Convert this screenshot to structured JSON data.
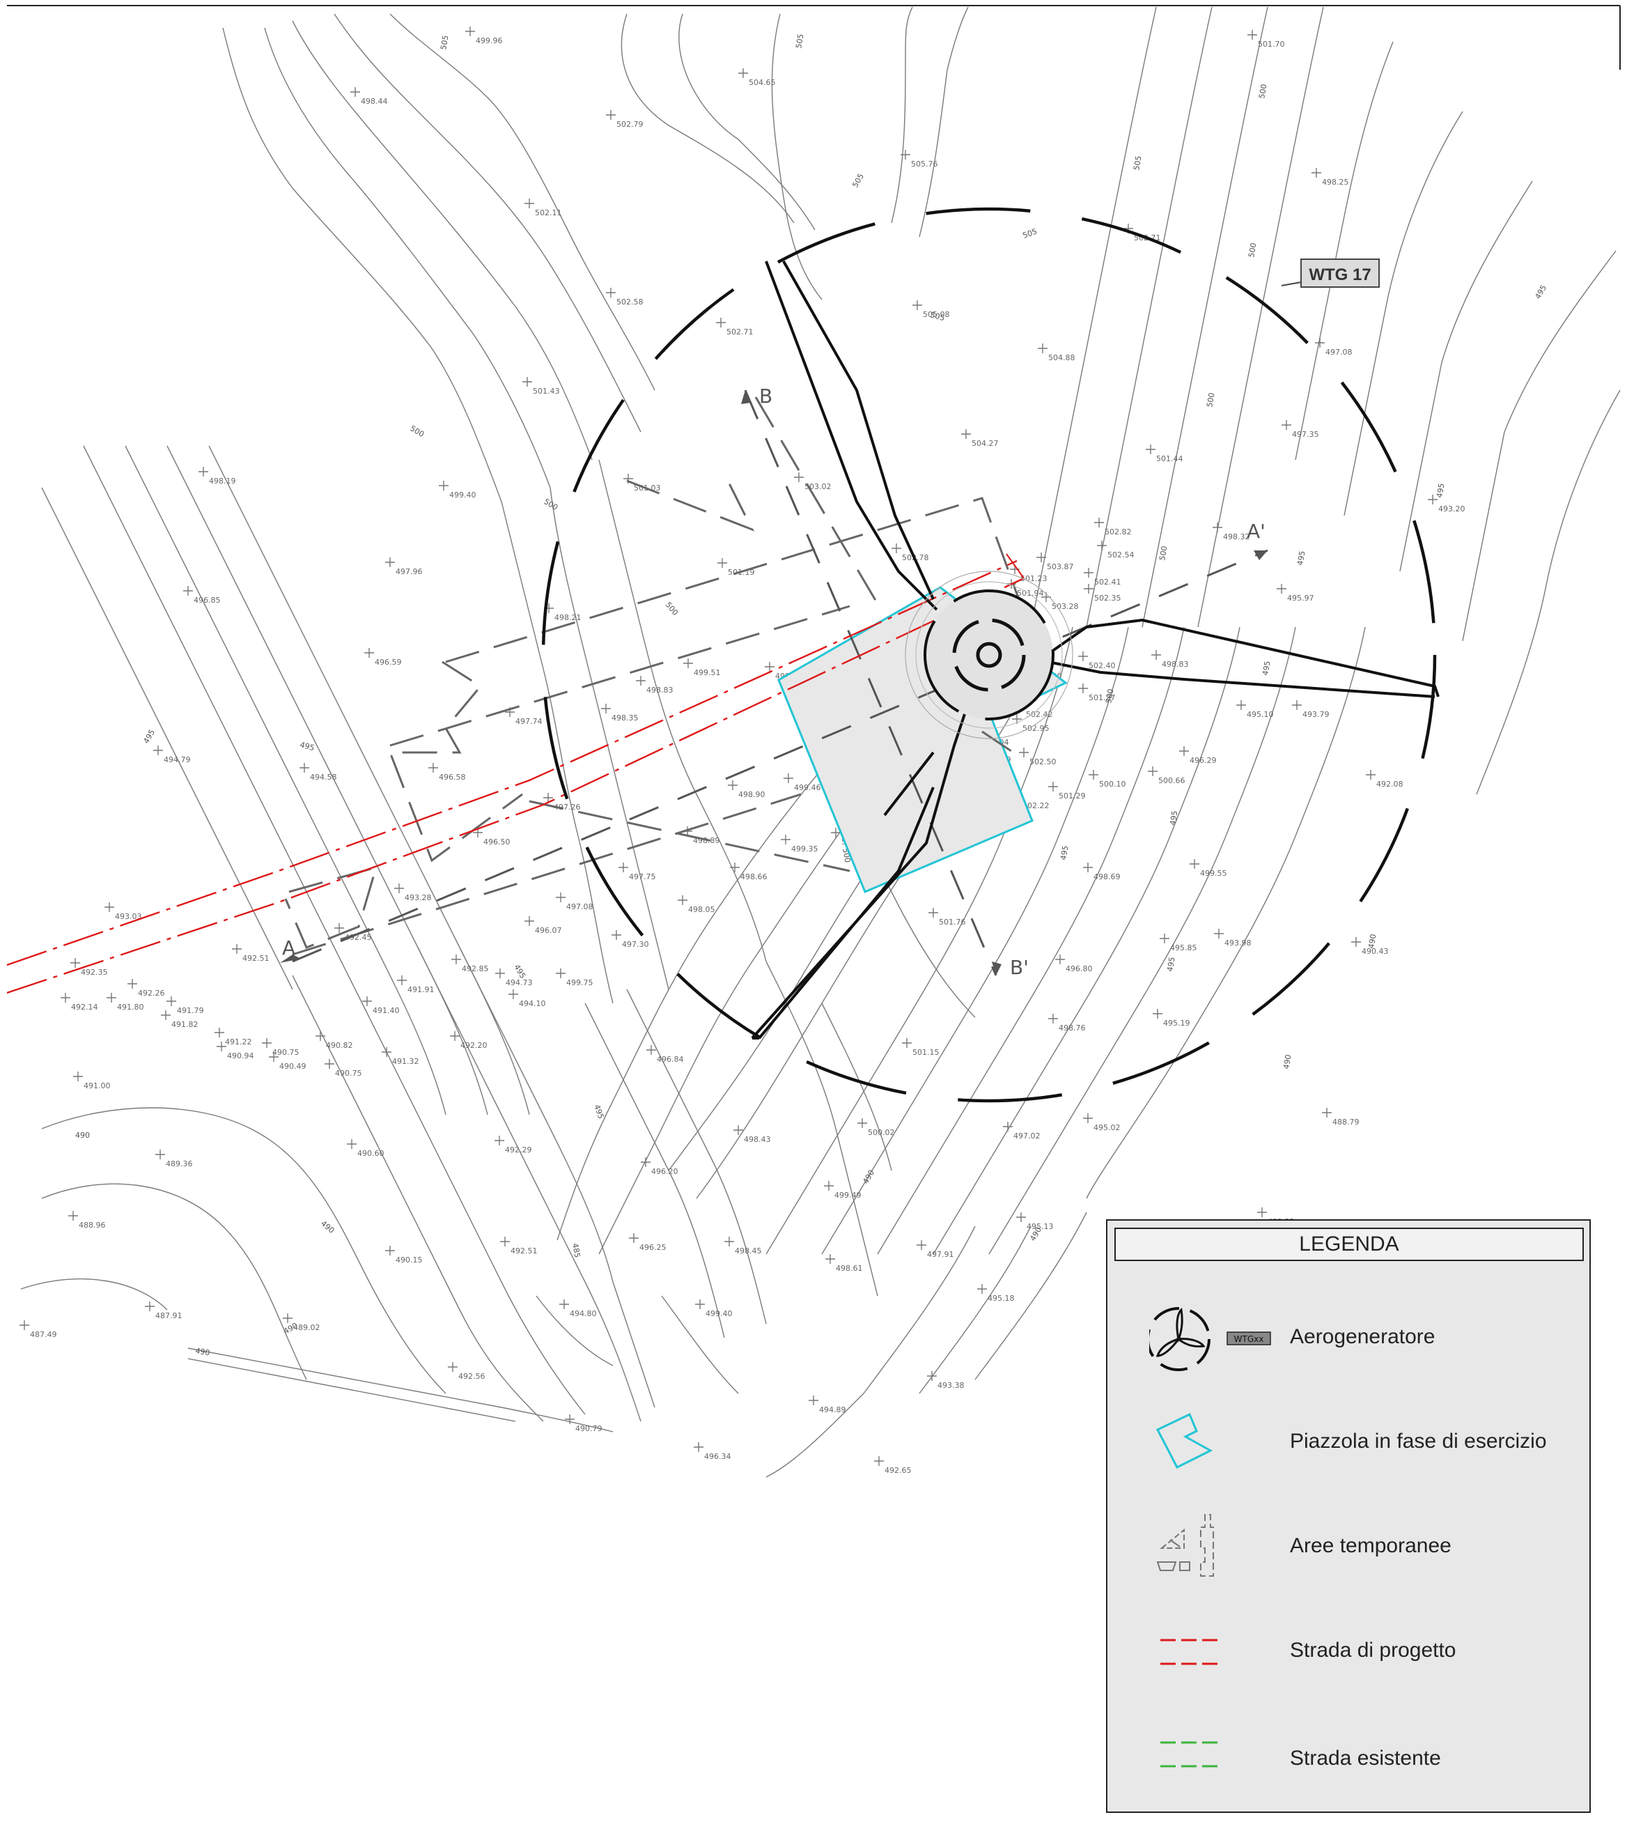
{
  "turbine": {
    "tag": "WTG 17"
  },
  "sections": {
    "a": "A",
    "a_prime": "A'",
    "b": "B",
    "b_prime": "B'"
  },
  "contour_labels": [
    "505",
    "505",
    "505",
    "505",
    "505",
    "505",
    "500",
    "500",
    "500",
    "500",
    "500",
    "500",
    "500",
    "500",
    "500",
    "495",
    "495",
    "495",
    "495",
    "495",
    "495",
    "495",
    "495",
    "495",
    "495",
    "495",
    "490",
    "490",
    "490",
    "490",
    "490",
    "490",
    "490",
    "490",
    "485"
  ],
  "spot_heights": [
    "499.96",
    "498.44",
    "504.65",
    "502.79",
    "505.76",
    "502.11",
    "502.58",
    "505.08",
    "502.71",
    "504.88",
    "501.43",
    "504.27",
    "498.19",
    "499.40",
    "501.03",
    "503.02",
    "497.96",
    "501.19",
    "502.78",
    "503.87",
    "496.85",
    "498.21",
    "496.59",
    "499.51",
    "498.83",
    "501.17",
    "497.74",
    "498.35",
    "499.96",
    "500.46",
    "501.50",
    "496.58",
    "494.79",
    "494.58",
    "497.26",
    "498.90",
    "499.46",
    "500.15",
    "501.40",
    "496.50",
    "498.89",
    "499.35",
    "500.30",
    "501.54",
    "497.75",
    "498.66",
    "493.28",
    "497.08",
    "498.05",
    "493.03",
    "492.45",
    "496.07",
    "497.30",
    "492.35",
    "492.51",
    "494.73",
    "492.85",
    "499.75",
    "492.14",
    "492.26",
    "491.80",
    "491.79",
    "491.82",
    "491.91",
    "494.10",
    "491.40",
    "501.76",
    "491.22",
    "490.94",
    "490.75",
    "490.49",
    "490.82",
    "490.75",
    "492.20",
    "491.32",
    "496.84",
    "491.00",
    "501.15",
    "490.60",
    "492.29",
    "496.20",
    "498.43",
    "500.02",
    "489.36",
    "488.96",
    "490.15",
    "492.51",
    "496.25",
    "498.45",
    "499.49",
    "487.49",
    "487.91",
    "489.02",
    "494.80",
    "499.40",
    "498.61",
    "492.56",
    "494.89",
    "496.34",
    "490.79",
    "492.65",
    "501.70",
    "498.25",
    "502.71",
    "497.08",
    "501.44",
    "497.35",
    "493.20",
    "498.32",
    "495.97",
    "502.82",
    "502.54",
    "502.41",
    "502.35",
    "501.23",
    "501.94",
    "503.28",
    "503.47",
    "503.76",
    "500.45",
    "502.77",
    "503.00",
    "502.40",
    "501.27",
    "502.42",
    "502.95",
    "503.04",
    "502.50",
    "502.89",
    "500.20",
    "501.29",
    "502.22",
    "502.70",
    "502.82",
    "498.83",
    "500.66",
    "495.10",
    "493.79",
    "496.29",
    "492.08",
    "500.10",
    "498.69",
    "499.55",
    "493.98",
    "495.85",
    "496.80",
    "490.43",
    "495.19",
    "498.76",
    "497.02",
    "495.02",
    "488.79",
    "495.13",
    "489.22",
    "497.91",
    "495.18",
    "493.38"
  ],
  "legend": {
    "title": "LEGENDA",
    "items": [
      {
        "label": "Aerogeneratore",
        "badge": "WTGxx"
      },
      {
        "label": "Piazzola in fase di esercizio"
      },
      {
        "label": "Aree temporanee"
      },
      {
        "label": "Strada di progetto"
      },
      {
        "label": "Strada esistente"
      }
    ]
  },
  "colors": {
    "pad_outline": "#22c5d4",
    "pad_fill": "#e8e8e8",
    "project_road": "#e01818",
    "existing_road": "#3cb43c",
    "contour": "#7a7a7a",
    "legend_bg": "#e8e8e8"
  }
}
